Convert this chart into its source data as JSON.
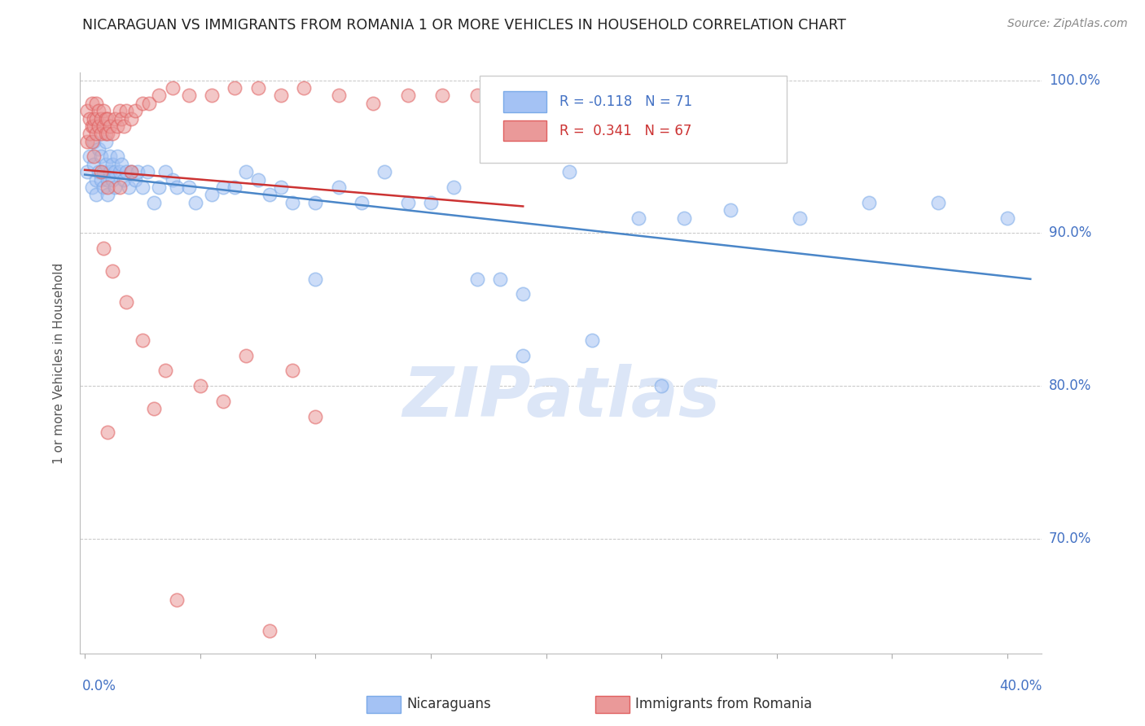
{
  "title": "NICARAGUAN VS IMMIGRANTS FROM ROMANIA 1 OR MORE VEHICLES IN HOUSEHOLD CORRELATION CHART",
  "source": "Source: ZipAtlas.com",
  "ylabel": "1 or more Vehicles in Household",
  "y_min": 0.625,
  "y_max": 1.005,
  "x_min": -0.002,
  "x_max": 0.415,
  "blue_color": "#a4c2f4",
  "pink_color": "#ea9999",
  "blue_line_color": "#4a86c8",
  "pink_line_color": "#cc3333",
  "legend_blue_r": -0.118,
  "legend_blue_n": 71,
  "legend_pink_r": 0.341,
  "legend_pink_n": 67,
  "background_color": "#ffffff",
  "grid_color": "#c0c0c0",
  "axis_label_color": "#4472c4",
  "watermark_color": "#dce6f7",
  "blue_x": [
    0.001,
    0.002,
    0.003,
    0.004,
    0.004,
    0.005,
    0.005,
    0.006,
    0.006,
    0.007,
    0.007,
    0.008,
    0.008,
    0.009,
    0.009,
    0.01,
    0.01,
    0.011,
    0.011,
    0.012,
    0.012,
    0.013,
    0.013,
    0.014,
    0.015,
    0.016,
    0.017,
    0.018,
    0.019,
    0.02,
    0.022,
    0.023,
    0.025,
    0.027,
    0.03,
    0.032,
    0.035,
    0.038,
    0.04,
    0.045,
    0.048,
    0.055,
    0.06,
    0.065,
    0.07,
    0.075,
    0.08,
    0.085,
    0.09,
    0.1,
    0.11,
    0.12,
    0.13,
    0.14,
    0.15,
    0.16,
    0.17,
    0.19,
    0.21,
    0.24,
    0.26,
    0.28,
    0.31,
    0.34,
    0.37,
    0.4,
    0.19,
    0.22,
    0.25,
    0.18,
    0.1
  ],
  "blue_y": [
    0.94,
    0.95,
    0.93,
    0.945,
    0.96,
    0.935,
    0.925,
    0.94,
    0.955,
    0.935,
    0.95,
    0.94,
    0.93,
    0.945,
    0.96,
    0.935,
    0.925,
    0.94,
    0.95,
    0.935,
    0.945,
    0.93,
    0.94,
    0.95,
    0.94,
    0.945,
    0.935,
    0.94,
    0.93,
    0.94,
    0.935,
    0.94,
    0.93,
    0.94,
    0.92,
    0.93,
    0.94,
    0.935,
    0.93,
    0.93,
    0.92,
    0.925,
    0.93,
    0.93,
    0.94,
    0.935,
    0.925,
    0.93,
    0.92,
    0.92,
    0.93,
    0.92,
    0.94,
    0.92,
    0.92,
    0.93,
    0.87,
    0.86,
    0.94,
    0.91,
    0.91,
    0.915,
    0.91,
    0.92,
    0.92,
    0.91,
    0.82,
    0.83,
    0.8,
    0.87,
    0.87
  ],
  "pink_x": [
    0.001,
    0.001,
    0.002,
    0.002,
    0.003,
    0.003,
    0.003,
    0.004,
    0.004,
    0.005,
    0.005,
    0.005,
    0.006,
    0.006,
    0.007,
    0.007,
    0.008,
    0.008,
    0.009,
    0.009,
    0.01,
    0.01,
    0.011,
    0.012,
    0.013,
    0.014,
    0.015,
    0.016,
    0.017,
    0.018,
    0.02,
    0.022,
    0.025,
    0.028,
    0.032,
    0.038,
    0.045,
    0.055,
    0.065,
    0.075,
    0.085,
    0.095,
    0.11,
    0.125,
    0.14,
    0.155,
    0.17,
    0.185,
    0.004,
    0.007,
    0.01,
    0.015,
    0.02,
    0.008,
    0.012,
    0.018,
    0.025,
    0.035,
    0.05,
    0.07,
    0.09,
    0.01,
    0.03,
    0.06,
    0.1,
    0.04,
    0.08
  ],
  "pink_y": [
    0.96,
    0.98,
    0.965,
    0.975,
    0.96,
    0.97,
    0.985,
    0.97,
    0.975,
    0.965,
    0.975,
    0.985,
    0.97,
    0.98,
    0.965,
    0.975,
    0.97,
    0.98,
    0.965,
    0.975,
    0.965,
    0.975,
    0.97,
    0.965,
    0.975,
    0.97,
    0.98,
    0.975,
    0.97,
    0.98,
    0.975,
    0.98,
    0.985,
    0.985,
    0.99,
    0.995,
    0.99,
    0.99,
    0.995,
    0.995,
    0.99,
    0.995,
    0.99,
    0.985,
    0.99,
    0.99,
    0.99,
    0.985,
    0.95,
    0.94,
    0.93,
    0.93,
    0.94,
    0.89,
    0.875,
    0.855,
    0.83,
    0.81,
    0.8,
    0.82,
    0.81,
    0.77,
    0.785,
    0.79,
    0.78,
    0.66,
    0.64
  ]
}
